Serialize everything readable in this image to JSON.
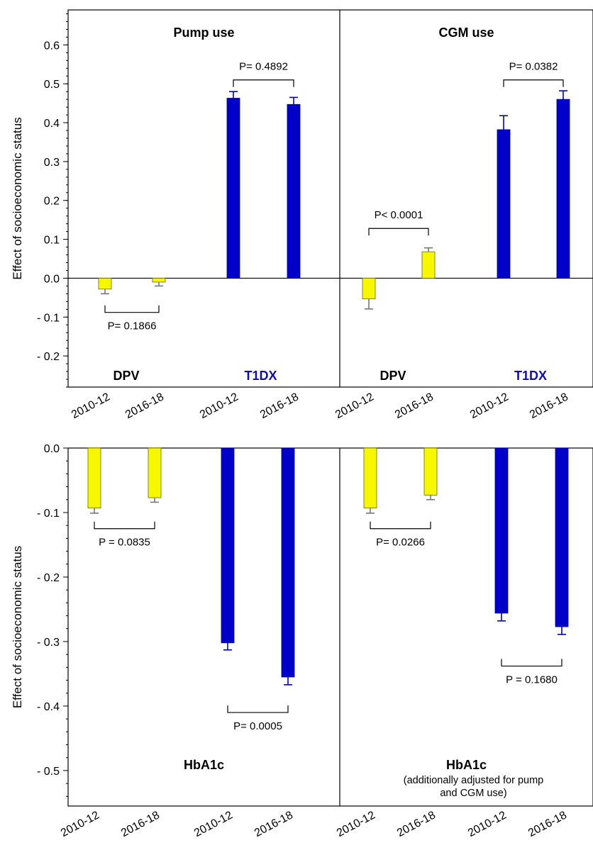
{
  "colors": {
    "dpv": "#f7f700",
    "dpv_stroke": "#6b6b00",
    "t1dx": "#0000c8",
    "t1dx_stroke": "#00008a",
    "err_dpv": "#777777",
    "err_t1dx": "#0000c8"
  },
  "chart_data": [
    {
      "type": "bar",
      "ylabel": "Effect of socioeconomic status",
      "ylim": [
        -0.28,
        0.69
      ],
      "yticks": [
        {
          "v": 0.6,
          "label": "0.6"
        },
        {
          "v": 0.5,
          "label": "0.5"
        },
        {
          "v": 0.4,
          "label": "0.4"
        },
        {
          "v": 0.3,
          "label": "0.3"
        },
        {
          "v": 0.2,
          "label": "0.2"
        },
        {
          "v": 0.1,
          "label": "0.1"
        },
        {
          "v": 0.0,
          "label": "0.0"
        },
        {
          "v": -0.1,
          "label": "- 0.1"
        },
        {
          "v": -0.2,
          "label": "- 0.2"
        }
      ],
      "panels": [
        {
          "title": "Pump use",
          "subtitle": [],
          "groups": [
            "DPV",
            "T1DX"
          ],
          "categories": [
            "2010-12",
            "2016-18",
            "2010-12",
            "2016-18"
          ],
          "series": [
            {
              "name": "DPV",
              "values": [
                -0.028,
                -0.01
              ],
              "err": [
                0.012,
                0.01
              ]
            },
            {
              "name": "T1DX",
              "values": [
                0.463,
                0.447
              ],
              "err": [
                0.017,
                0.018
              ]
            }
          ],
          "pvalues": [
            {
              "label": "P= 0.1866",
              "between": [
                0,
                1
              ],
              "at": -0.088,
              "tick_dir": "up",
              "text_side": "below"
            },
            {
              "label": "P= 0.4892",
              "between": [
                2,
                3
              ],
              "at": 0.51,
              "tick_dir": "down",
              "text_side": "above"
            }
          ]
        },
        {
          "title": "CGM use",
          "subtitle": [],
          "groups": [
            "DPV",
            "T1DX"
          ],
          "categories": [
            "2010-12",
            "2016-18",
            "2010-12",
            "2016-18"
          ],
          "series": [
            {
              "name": "DPV",
              "values": [
                -0.053,
                0.068
              ],
              "err": [
                0.026,
                0.01
              ]
            },
            {
              "name": "T1DX",
              "values": [
                0.382,
                0.46
              ],
              "err": [
                0.036,
                0.022
              ]
            }
          ],
          "pvalues": [
            {
              "label": "P< 0.0001",
              "between": [
                0,
                1
              ],
              "at": 0.128,
              "tick_dir": "down",
              "text_side": "above"
            },
            {
              "label": "P= 0.0382",
              "between": [
                2,
                3
              ],
              "at": 0.51,
              "tick_dir": "down",
              "text_side": "above"
            }
          ]
        }
      ]
    },
    {
      "type": "bar",
      "ylabel": "Effect of socioeconomic status",
      "ylim": [
        -0.555,
        0.0
      ],
      "yticks": [
        {
          "v": 0.0,
          "label": "0.0"
        },
        {
          "v": -0.1,
          "label": "- 0.1"
        },
        {
          "v": -0.2,
          "label": "- 0.2"
        },
        {
          "v": -0.3,
          "label": "- 0.3"
        },
        {
          "v": -0.4,
          "label": "- 0.4"
        },
        {
          "v": -0.5,
          "label": "- 0.5"
        }
      ],
      "panels": [
        {
          "title": "HbA1c",
          "subtitle": [],
          "groups": [],
          "categories": [
            "2010-12",
            "2016-18",
            "2010-12",
            "2016-18"
          ],
          "series": [
            {
              "name": "DPV",
              "values": [
                -0.093,
                -0.077
              ],
              "err": [
                0.008,
                0.007
              ]
            },
            {
              "name": "T1DX",
              "values": [
                -0.302,
                -0.355
              ],
              "err": [
                0.011,
                0.012
              ]
            }
          ],
          "pvalues": [
            {
              "label": "P = 0.0835",
              "between": [
                0,
                1
              ],
              "at": -0.125,
              "tick_dir": "up",
              "text_side": "below"
            },
            {
              "label": "P= 0.0005",
              "between": [
                2,
                3
              ],
              "at": -0.41,
              "tick_dir": "up",
              "text_side": "below"
            }
          ]
        },
        {
          "title": "HbA1c",
          "subtitle": [
            "(additionally adjusted for pump",
            "and CGM use)"
          ],
          "groups": [],
          "categories": [
            "2010-12",
            "2016-18",
            "2010-12",
            "2016-18"
          ],
          "series": [
            {
              "name": "DPV",
              "values": [
                -0.093,
                -0.073
              ],
              "err": [
                0.008,
                0.007
              ]
            },
            {
              "name": "T1DX",
              "values": [
                -0.256,
                -0.277
              ],
              "err": [
                0.012,
                0.012
              ]
            }
          ],
          "pvalues": [
            {
              "label": "P= 0.0266",
              "between": [
                0,
                1
              ],
              "at": -0.125,
              "tick_dir": "up",
              "text_side": "below"
            },
            {
              "label": "P = 0.1680",
              "between": [
                2,
                3
              ],
              "at": -0.338,
              "tick_dir": "up",
              "text_side": "below"
            }
          ]
        }
      ]
    }
  ]
}
